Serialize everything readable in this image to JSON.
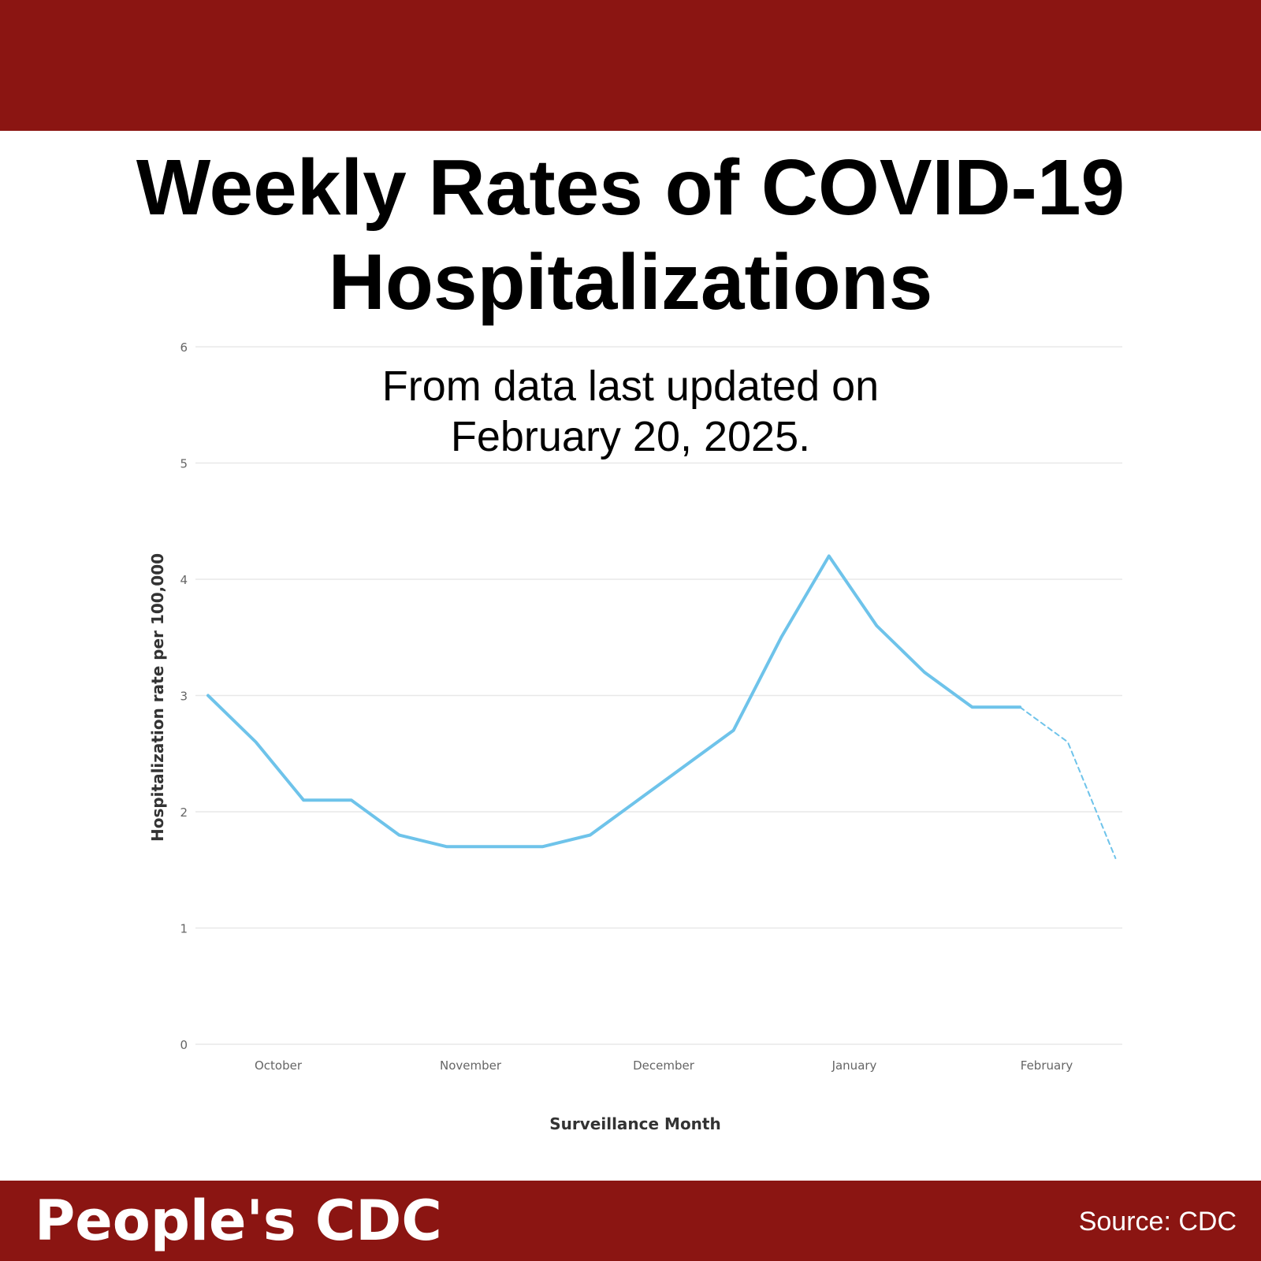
{
  "header": {
    "title_lines": [
      "Weekly Rates of COVID-19",
      "Hospitalizations"
    ],
    "subtitle_lines": [
      "From data last updated on",
      "February 20, 2025."
    ]
  },
  "footer": {
    "brand": "People's CDC",
    "source": "Source: CDC"
  },
  "colors": {
    "band": "#8b1512",
    "line": "#6ec3ea",
    "grid": "#e8e8e8"
  },
  "chart_data": {
    "type": "line",
    "title": "",
    "xlabel": "Surveillance Month",
    "ylabel": "Hospitalization rate per 100,000",
    "ylim": [
      0,
      6
    ],
    "yticks": [
      0,
      1,
      2,
      3,
      4,
      5,
      6
    ],
    "x_month_labels": [
      "October",
      "November",
      "December",
      "January",
      "February"
    ],
    "grid": true,
    "series": [
      {
        "style": "solid",
        "values": [
          3.0,
          2.6,
          2.1,
          2.1,
          1.8,
          1.7,
          1.7,
          1.7,
          1.8,
          2.1,
          2.4,
          2.7,
          3.5,
          4.2,
          3.6,
          3.2,
          2.9,
          2.9
        ]
      },
      {
        "style": "dashed",
        "start_index": 17,
        "values": [
          2.9,
          2.6,
          1.6
        ]
      }
    ]
  }
}
